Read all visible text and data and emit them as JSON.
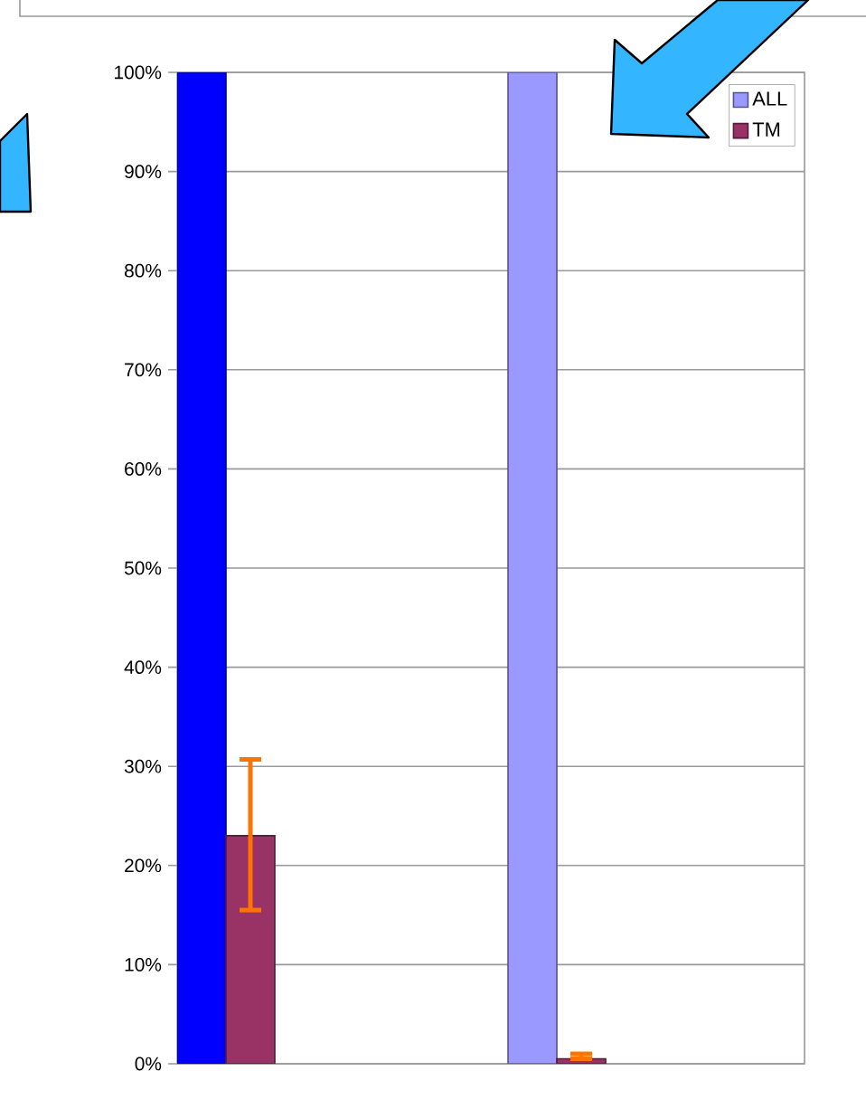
{
  "chart_data": {
    "type": "bar",
    "categories": [
      null,
      null
    ],
    "ylim": [
      0,
      100
    ],
    "yticks": [
      {
        "value": 0,
        "label": "0%"
      },
      {
        "value": 10,
        "label": "10%"
      },
      {
        "value": 20,
        "label": "20%"
      },
      {
        "value": 30,
        "label": "30%"
      },
      {
        "value": 40,
        "label": "40%"
      },
      {
        "value": 50,
        "label": "50%"
      },
      {
        "value": 60,
        "label": "60%"
      },
      {
        "value": 70,
        "label": "70%"
      },
      {
        "value": 80,
        "label": "80%"
      },
      {
        "value": 90,
        "label": "90%"
      },
      {
        "value": 100,
        "label": "100%"
      }
    ],
    "grid": "y",
    "legend": "top right",
    "series": [
      {
        "name": "ALL",
        "color": "#9999ff",
        "colors": [
          "#0000ff",
          "#9999ff"
        ],
        "values": [
          100,
          100
        ]
      },
      {
        "name": "TM",
        "color": "#993366",
        "values": [
          23,
          0.5
        ],
        "errors": [
          [
            15.5,
            30.7
          ],
          [
            0.5,
            1
          ]
        ]
      }
    ]
  }
}
